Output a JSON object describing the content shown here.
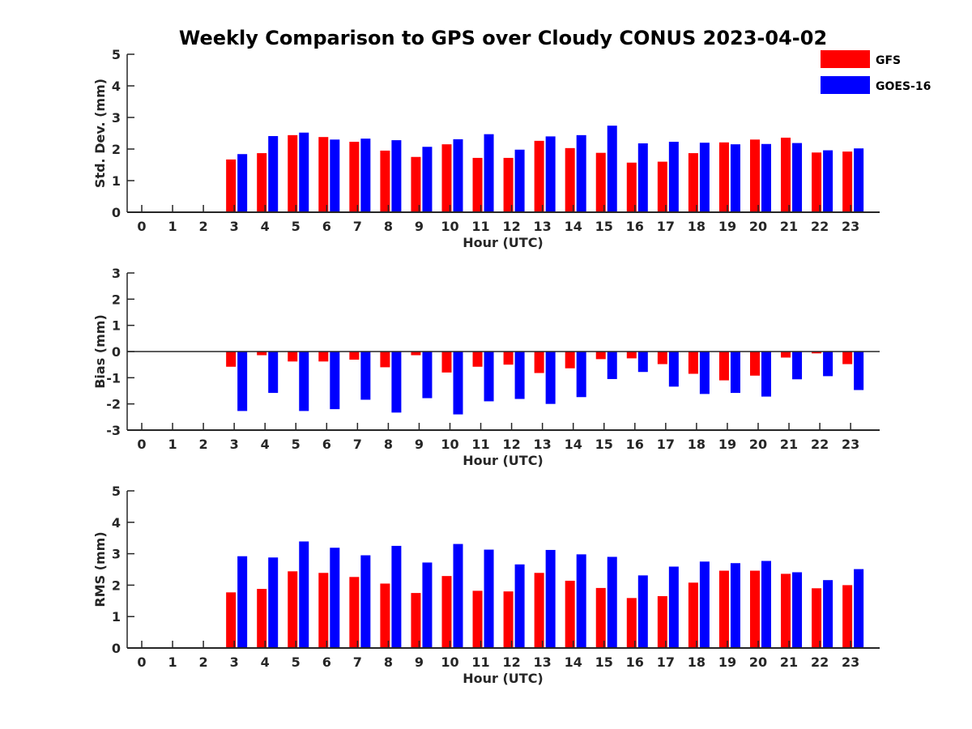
{
  "title": "Weekly Comparison to GPS over Cloudy CONUS 2023-04-02",
  "legend": {
    "placement": "top-right",
    "items": [
      {
        "name": "GFS",
        "color": "#ff0000"
      },
      {
        "name": "GOES-16",
        "color": "#0000ff"
      }
    ]
  },
  "chart_data": [
    {
      "type": "bar",
      "xlabel": "Hour (UTC)",
      "ylabel": "Std. Dev. (mm)",
      "ylim": [
        0,
        5
      ],
      "yticks": [
        0,
        1,
        2,
        3,
        4,
        5
      ],
      "categories": [
        "0",
        "1",
        "2",
        "3",
        "4",
        "5",
        "6",
        "7",
        "8",
        "9",
        "10",
        "11",
        "12",
        "13",
        "14",
        "15",
        "16",
        "17",
        "18",
        "19",
        "20",
        "21",
        "22",
        "23"
      ],
      "series": [
        {
          "name": "GFS",
          "color": "#ff0000",
          "values": [
            null,
            null,
            null,
            1.67,
            1.87,
            2.44,
            2.38,
            2.23,
            1.95,
            1.75,
            2.15,
            1.72,
            1.72,
            2.26,
            2.03,
            1.88,
            1.57,
            1.6,
            1.87,
            2.21,
            2.3,
            2.36,
            1.89,
            1.92
          ]
        },
        {
          "name": "GOES-16",
          "color": "#0000ff",
          "values": [
            null,
            null,
            null,
            1.84,
            2.41,
            2.52,
            2.3,
            2.33,
            2.28,
            2.07,
            2.31,
            2.47,
            1.98,
            2.4,
            2.44,
            2.74,
            2.18,
            2.23,
            2.2,
            2.15,
            2.16,
            2.19,
            1.96,
            2.02
          ]
        }
      ]
    },
    {
      "type": "bar",
      "xlabel": "Hour (UTC)",
      "ylabel": "Bias (mm)",
      "ylim": [
        -3,
        3
      ],
      "yticks": [
        -3,
        -2,
        -1,
        0,
        1,
        2,
        3
      ],
      "zero_line": true,
      "categories": [
        "0",
        "1",
        "2",
        "3",
        "4",
        "5",
        "6",
        "7",
        "8",
        "9",
        "10",
        "11",
        "12",
        "13",
        "14",
        "15",
        "16",
        "17",
        "18",
        "19",
        "20",
        "21",
        "22",
        "23"
      ],
      "series": [
        {
          "name": "GFS",
          "color": "#ff0000",
          "values": [
            null,
            null,
            null,
            -0.58,
            -0.14,
            -0.38,
            -0.38,
            -0.31,
            -0.6,
            -0.14,
            -0.8,
            -0.58,
            -0.5,
            -0.82,
            -0.64,
            -0.29,
            -0.26,
            -0.48,
            -0.85,
            -1.1,
            -0.92,
            -0.23,
            -0.07,
            -0.48
          ]
        },
        {
          "name": "GOES-16",
          "color": "#0000ff",
          "values": [
            null,
            null,
            null,
            -2.27,
            -1.58,
            -2.27,
            -2.2,
            -1.84,
            -2.33,
            -1.78,
            -2.4,
            -1.9,
            -1.81,
            -2.0,
            -1.74,
            -1.05,
            -0.78,
            -1.34,
            -1.62,
            -1.58,
            -1.72,
            -1.06,
            -0.94,
            -1.47
          ]
        }
      ]
    },
    {
      "type": "bar",
      "xlabel": "Hour (UTC)",
      "ylabel": "RMS (mm)",
      "ylim": [
        0,
        5
      ],
      "yticks": [
        0,
        1,
        2,
        3,
        4,
        5
      ],
      "categories": [
        "0",
        "1",
        "2",
        "3",
        "4",
        "5",
        "6",
        "7",
        "8",
        "9",
        "10",
        "11",
        "12",
        "13",
        "14",
        "15",
        "16",
        "17",
        "18",
        "19",
        "20",
        "21",
        "22",
        "23"
      ],
      "series": [
        {
          "name": "GFS",
          "color": "#ff0000",
          "values": [
            null,
            null,
            null,
            1.77,
            1.88,
            2.44,
            2.39,
            2.26,
            2.05,
            1.75,
            2.29,
            1.82,
            1.8,
            2.39,
            2.14,
            1.91,
            1.59,
            1.65,
            2.08,
            2.46,
            2.46,
            2.36,
            1.9,
            2.0
          ]
        },
        {
          "name": "GOES-16",
          "color": "#0000ff",
          "values": [
            null,
            null,
            null,
            2.92,
            2.88,
            3.39,
            3.19,
            2.95,
            3.25,
            2.72,
            3.31,
            3.13,
            2.66,
            3.12,
            2.98,
            2.9,
            2.31,
            2.59,
            2.75,
            2.7,
            2.77,
            2.41,
            2.16,
            2.51
          ]
        }
      ]
    }
  ]
}
